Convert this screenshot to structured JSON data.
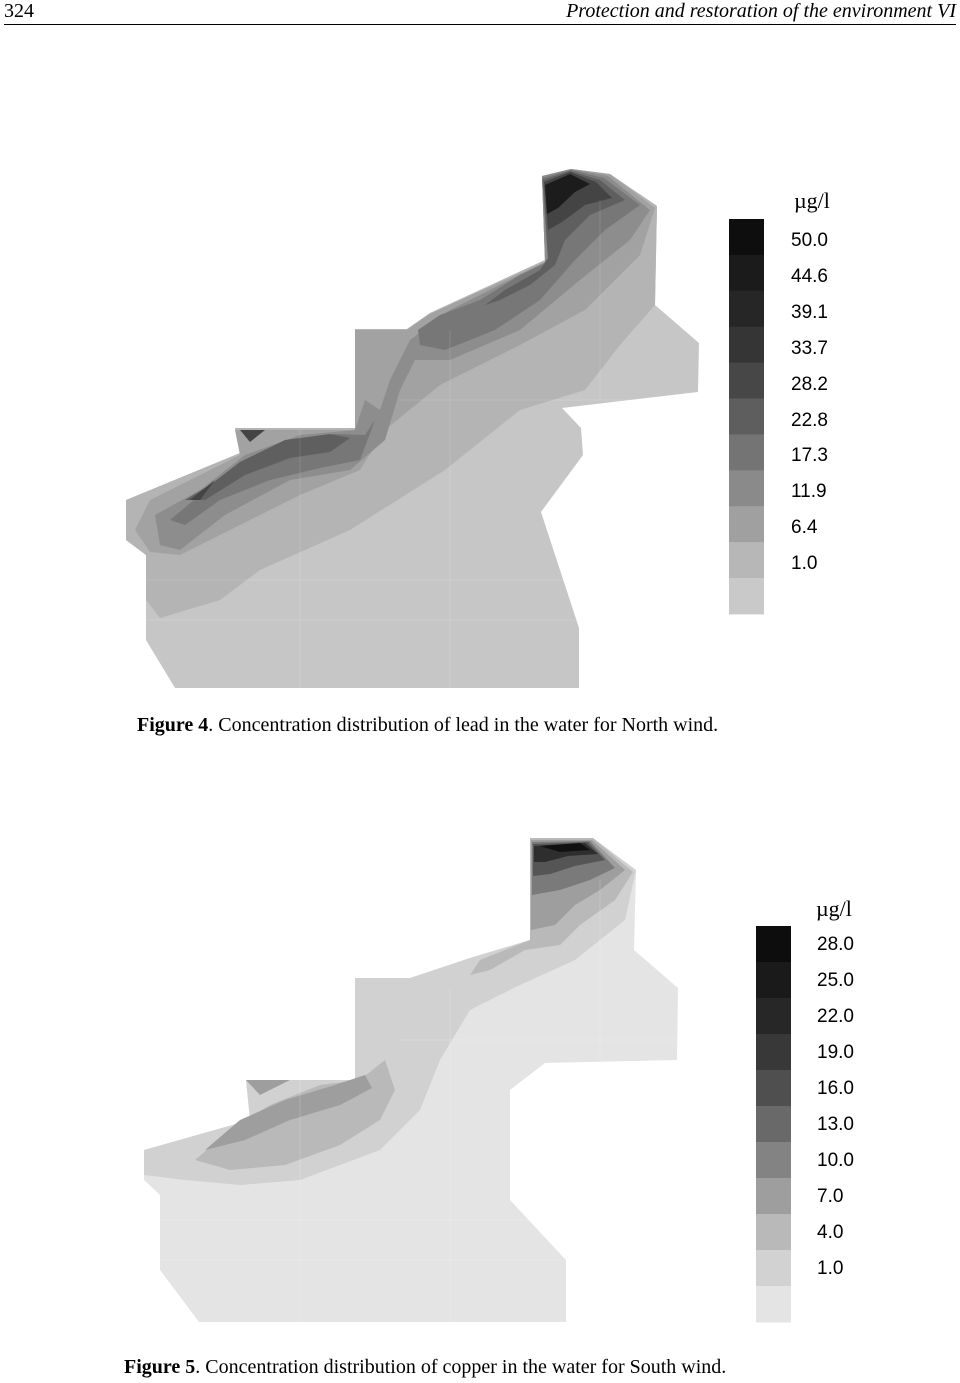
{
  "running_head": {
    "page_number": "324",
    "title": "Protection and restoration of the environment VI"
  },
  "figures": [
    {
      "label": "Figure 4",
      "caption": ". Concentration distribution of lead in the water for North wind.",
      "legend_unit": "µg/l",
      "legend_values": [
        "50.0",
        "44.6",
        "39.1",
        "33.7",
        "28.2",
        "22.8",
        "17.3",
        "11.9",
        "6.4",
        "1.0"
      ],
      "legend_colors": [
        "#0e0e0e",
        "#1b1b1b",
        "#262626",
        "#353535",
        "#474747",
        "#5e5e5e",
        "#747474",
        "#8a8a8a",
        "#a0a0a0",
        "#b7b7b7",
        "#c9c9c9"
      ]
    },
    {
      "label": "Figure 5",
      "caption": ". Concentration distribution of copper in the water for South wind.",
      "legend_unit": "µg/l",
      "legend_values": [
        "28.0",
        "25.0",
        "22.0",
        "19.0",
        "16.0",
        "13.0",
        "10.0",
        "7.0",
        "4.0",
        "1.0"
      ],
      "legend_colors": [
        "#0d0d0d",
        "#1a1a1a",
        "#272727",
        "#383838",
        "#4f4f4f",
        "#696969",
        "#838383",
        "#9e9e9e",
        "#b9b9b9",
        "#d2d2d2",
        "#e4e4e4"
      ]
    }
  ]
}
